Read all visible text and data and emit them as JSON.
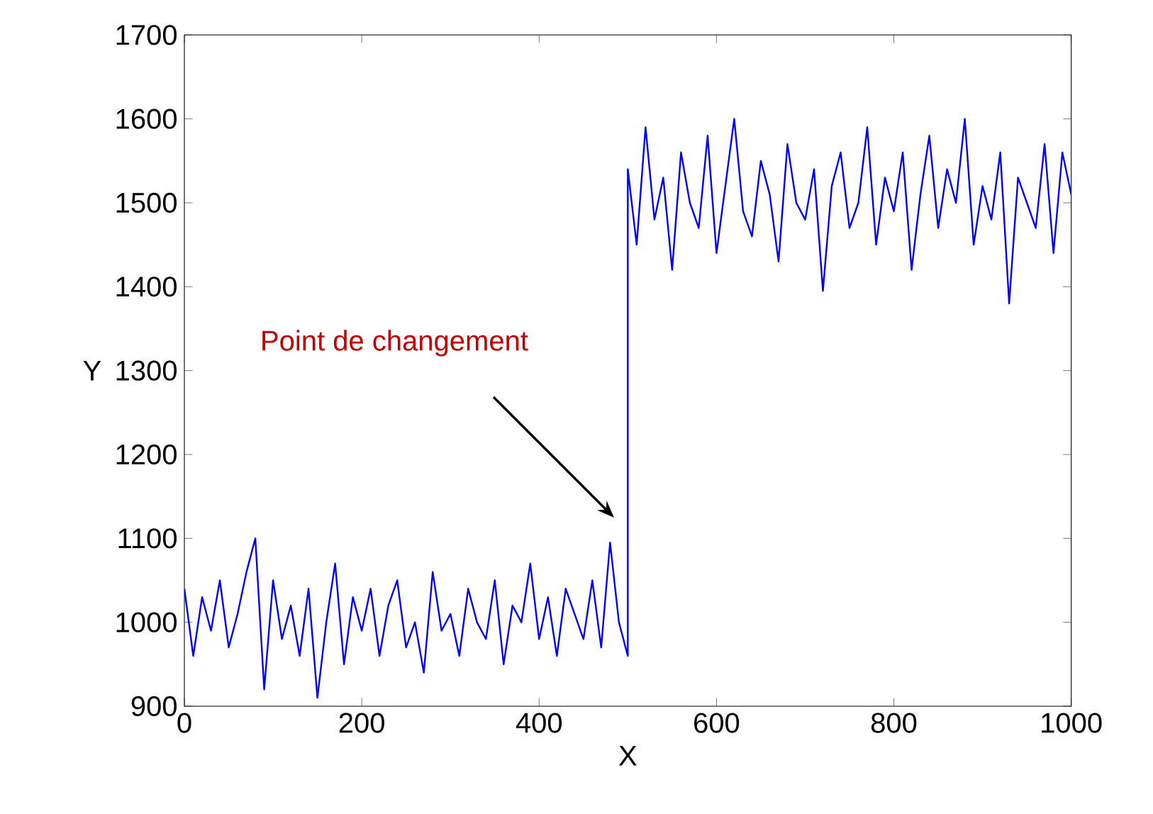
{
  "chart_data": {
    "type": "line",
    "xlabel": "X",
    "ylabel": "Y",
    "color": "#0000ff",
    "xlim": [
      0,
      1000
    ],
    "ylim": [
      900,
      1700
    ],
    "xticks": [
      0,
      200,
      400,
      600,
      800,
      1000
    ],
    "yticks": [
      900,
      1000,
      1100,
      1200,
      1300,
      1400,
      1500,
      1600,
      1700
    ],
    "grid": false,
    "annotations": [
      "Point de changement"
    ],
    "x": [
      0,
      10,
      20,
      30,
      40,
      50,
      60,
      70,
      80,
      90,
      100,
      110,
      120,
      130,
      140,
      150,
      160,
      170,
      180,
      190,
      200,
      210,
      220,
      230,
      240,
      250,
      260,
      270,
      280,
      290,
      300,
      310,
      320,
      330,
      340,
      350,
      360,
      370,
      380,
      390,
      400,
      410,
      420,
      430,
      440,
      450,
      460,
      470,
      480,
      490,
      500,
      500,
      510,
      520,
      530,
      540,
      550,
      560,
      570,
      580,
      590,
      600,
      610,
      620,
      630,
      640,
      650,
      660,
      670,
      680,
      690,
      700,
      710,
      720,
      730,
      740,
      750,
      760,
      770,
      780,
      790,
      800,
      810,
      820,
      830,
      840,
      850,
      860,
      870,
      880,
      890,
      900,
      910,
      920,
      930,
      940,
      950,
      960,
      970,
      980,
      990,
      1000
    ],
    "values": [
      1040,
      960,
      1030,
      990,
      1050,
      970,
      1010,
      1060,
      1100,
      920,
      1050,
      980,
      1020,
      960,
      1040,
      910,
      1000,
      1070,
      950,
      1030,
      990,
      1040,
      960,
      1020,
      1050,
      970,
      1000,
      940,
      1060,
      990,
      1010,
      960,
      1040,
      1000,
      980,
      1050,
      950,
      1020,
      1000,
      1070,
      980,
      1030,
      960,
      1040,
      1010,
      980,
      1050,
      970,
      1095,
      1000,
      960,
      1540,
      1450,
      1590,
      1480,
      1530,
      1420,
      1560,
      1500,
      1470,
      1580,
      1440,
      1520,
      1600,
      1490,
      1460,
      1550,
      1510,
      1430,
      1570,
      1500,
      1480,
      1540,
      1395,
      1520,
      1560,
      1470,
      1500,
      1590,
      1450,
      1530,
      1490,
      1560,
      1420,
      1510,
      1580,
      1470,
      1540,
      1500,
      1600,
      1450,
      1520,
      1480,
      1560,
      1380,
      1530,
      1500,
      1470,
      1570,
      1440,
      1560,
      1510
    ]
  }
}
